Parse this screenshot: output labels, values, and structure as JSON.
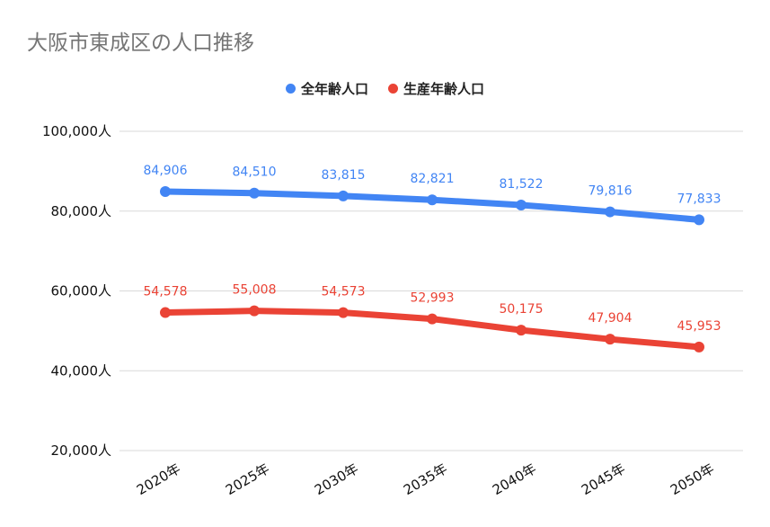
{
  "chart_data": {
    "type": "line",
    "title": "大阪市東成区の人口推移",
    "categories": [
      "2020年",
      "2025年",
      "2030年",
      "2035年",
      "2040年",
      "2045年",
      "2050年"
    ],
    "series": [
      {
        "name": "全年齢人口",
        "color": "#4285f4",
        "values": [
          84906,
          84510,
          83815,
          82821,
          81522,
          79816,
          77833
        ],
        "labels": [
          "84,906",
          "84,510",
          "83,815",
          "82,821",
          "81,522",
          "79,816",
          "77,833"
        ]
      },
      {
        "name": "生産年齢人口",
        "color": "#ea4335",
        "values": [
          54578,
          55008,
          54573,
          52993,
          50175,
          47904,
          45953
        ],
        "labels": [
          "54,578",
          "55,008",
          "54,573",
          "52,993",
          "50,175",
          "47,904",
          "45,953"
        ]
      }
    ],
    "ylim": [
      20000,
      100000
    ],
    "yticks": [
      20000,
      40000,
      60000,
      80000,
      100000
    ],
    "ytick_labels": [
      "20,000人",
      "40,000人",
      "60,000人",
      "80,000人",
      "100,000人"
    ],
    "legend": "top",
    "grid": true
  }
}
